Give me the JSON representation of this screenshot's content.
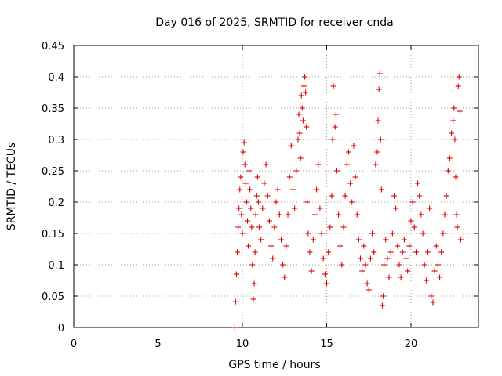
{
  "chart_data": {
    "type": "scatter",
    "title": "Day 016 of 2025, SRMTID for receiver cnda",
    "xlabel": "GPS time / hours",
    "ylabel": "SRMTID / TECUs",
    "xlim": [
      0,
      24
    ],
    "ylim": [
      0,
      0.45
    ],
    "xticks": [
      0,
      5,
      10,
      15,
      20
    ],
    "xtick_labels": [
      "0",
      "5",
      "10",
      "15",
      "20"
    ],
    "yticks": [
      0,
      0.05,
      0.1,
      0.15,
      0.2,
      0.25,
      0.3,
      0.35,
      0.4,
      0.45
    ],
    "ytick_labels": [
      "0",
      "0.05",
      "0.1",
      "0.15",
      "0.2",
      "0.25",
      "0.3",
      "0.35",
      "0.4",
      "0.45"
    ],
    "grid": true,
    "marker": "+",
    "marker_color": "#e00000",
    "series": [
      {
        "name": "SRMTID",
        "points": [
          [
            9.55,
            0.0
          ],
          [
            9.6,
            0.041
          ],
          [
            9.65,
            0.085
          ],
          [
            9.7,
            0.12
          ],
          [
            9.75,
            0.16
          ],
          [
            9.8,
            0.19
          ],
          [
            9.85,
            0.22
          ],
          [
            9.9,
            0.24
          ],
          [
            9.95,
            0.18
          ],
          [
            10.0,
            0.15
          ],
          [
            10.05,
            0.28
          ],
          [
            10.1,
            0.295
          ],
          [
            10.15,
            0.26
          ],
          [
            10.2,
            0.23
          ],
          [
            10.25,
            0.2
          ],
          [
            10.3,
            0.17
          ],
          [
            10.35,
            0.13
          ],
          [
            10.4,
            0.25
          ],
          [
            10.45,
            0.22
          ],
          [
            10.5,
            0.19
          ],
          [
            10.55,
            0.16
          ],
          [
            10.6,
            0.1
          ],
          [
            10.65,
            0.045
          ],
          [
            10.7,
            0.07
          ],
          [
            10.75,
            0.12
          ],
          [
            10.8,
            0.18
          ],
          [
            10.85,
            0.21
          ],
          [
            10.9,
            0.24
          ],
          [
            10.95,
            0.2
          ],
          [
            11.0,
            0.16
          ],
          [
            11.1,
            0.14
          ],
          [
            11.2,
            0.19
          ],
          [
            11.3,
            0.23
          ],
          [
            11.4,
            0.26
          ],
          [
            11.5,
            0.21
          ],
          [
            11.6,
            0.17
          ],
          [
            11.7,
            0.13
          ],
          [
            11.8,
            0.11
          ],
          [
            11.9,
            0.16
          ],
          [
            12.0,
            0.2
          ],
          [
            12.1,
            0.22
          ],
          [
            12.2,
            0.18
          ],
          [
            12.3,
            0.14
          ],
          [
            12.4,
            0.1
          ],
          [
            12.5,
            0.08
          ],
          [
            12.6,
            0.13
          ],
          [
            12.7,
            0.18
          ],
          [
            12.8,
            0.24
          ],
          [
            12.9,
            0.29
          ],
          [
            13.0,
            0.22
          ],
          [
            13.1,
            0.19
          ],
          [
            13.2,
            0.25
          ],
          [
            13.3,
            0.3
          ],
          [
            13.35,
            0.34
          ],
          [
            13.4,
            0.31
          ],
          [
            13.45,
            0.27
          ],
          [
            13.5,
            0.37
          ],
          [
            13.55,
            0.35
          ],
          [
            13.6,
            0.33
          ],
          [
            13.65,
            0.385
          ],
          [
            13.7,
            0.4
          ],
          [
            13.75,
            0.375
          ],
          [
            13.8,
            0.32
          ],
          [
            13.85,
            0.2
          ],
          [
            13.9,
            0.15
          ],
          [
            14.0,
            0.12
          ],
          [
            14.1,
            0.09
          ],
          [
            14.2,
            0.14
          ],
          [
            14.3,
            0.18
          ],
          [
            14.4,
            0.22
          ],
          [
            14.5,
            0.26
          ],
          [
            14.6,
            0.19
          ],
          [
            14.7,
            0.15
          ],
          [
            14.8,
            0.11
          ],
          [
            14.9,
            0.085
          ],
          [
            15.0,
            0.07
          ],
          [
            15.1,
            0.12
          ],
          [
            15.2,
            0.16
          ],
          [
            15.3,
            0.21
          ],
          [
            15.35,
            0.3
          ],
          [
            15.4,
            0.385
          ],
          [
            15.5,
            0.32
          ],
          [
            15.55,
            0.34
          ],
          [
            15.6,
            0.25
          ],
          [
            15.7,
            0.18
          ],
          [
            15.8,
            0.13
          ],
          [
            15.9,
            0.1
          ],
          [
            16.0,
            0.16
          ],
          [
            16.1,
            0.21
          ],
          [
            16.2,
            0.26
          ],
          [
            16.3,
            0.28
          ],
          [
            16.4,
            0.23
          ],
          [
            16.5,
            0.2
          ],
          [
            16.6,
            0.29
          ],
          [
            16.7,
            0.24
          ],
          [
            16.8,
            0.18
          ],
          [
            16.9,
            0.14
          ],
          [
            17.0,
            0.11
          ],
          [
            17.1,
            0.09
          ],
          [
            17.2,
            0.13
          ],
          [
            17.3,
            0.1
          ],
          [
            17.4,
            0.07
          ],
          [
            17.5,
            0.06
          ],
          [
            17.6,
            0.11
          ],
          [
            17.7,
            0.15
          ],
          [
            17.8,
            0.12
          ],
          [
            17.9,
            0.26
          ],
          [
            18.0,
            0.28
          ],
          [
            18.05,
            0.33
          ],
          [
            18.1,
            0.38
          ],
          [
            18.15,
            0.405
          ],
          [
            18.2,
            0.3
          ],
          [
            18.25,
            0.22
          ],
          [
            18.3,
            0.035
          ],
          [
            18.35,
            0.05
          ],
          [
            18.4,
            0.1
          ],
          [
            18.5,
            0.14
          ],
          [
            18.6,
            0.11
          ],
          [
            18.7,
            0.08
          ],
          [
            18.8,
            0.12
          ],
          [
            18.9,
            0.15
          ],
          [
            19.0,
            0.21
          ],
          [
            19.1,
            0.19
          ],
          [
            19.2,
            0.13
          ],
          [
            19.3,
            0.1
          ],
          [
            19.4,
            0.08
          ],
          [
            19.5,
            0.12
          ],
          [
            19.6,
            0.14
          ],
          [
            19.7,
            0.11
          ],
          [
            19.8,
            0.09
          ],
          [
            19.9,
            0.13
          ],
          [
            20.0,
            0.17
          ],
          [
            20.1,
            0.2
          ],
          [
            20.2,
            0.16
          ],
          [
            20.3,
            0.12
          ],
          [
            20.4,
            0.23
          ],
          [
            20.5,
            0.21
          ],
          [
            20.6,
            0.18
          ],
          [
            20.7,
            0.15
          ],
          [
            20.8,
            0.1
          ],
          [
            20.9,
            0.075
          ],
          [
            21.0,
            0.12
          ],
          [
            21.1,
            0.19
          ],
          [
            21.2,
            0.05
          ],
          [
            21.3,
            0.04
          ],
          [
            21.4,
            0.09
          ],
          [
            21.5,
            0.13
          ],
          [
            21.6,
            0.1
          ],
          [
            21.7,
            0.08
          ],
          [
            21.8,
            0.12
          ],
          [
            21.9,
            0.15
          ],
          [
            22.0,
            0.18
          ],
          [
            22.1,
            0.21
          ],
          [
            22.2,
            0.25
          ],
          [
            22.3,
            0.27
          ],
          [
            22.4,
            0.31
          ],
          [
            22.5,
            0.33
          ],
          [
            22.55,
            0.35
          ],
          [
            22.6,
            0.3
          ],
          [
            22.65,
            0.24
          ],
          [
            22.7,
            0.18
          ],
          [
            22.75,
            0.16
          ],
          [
            22.8,
            0.385
          ],
          [
            22.85,
            0.4
          ],
          [
            22.9,
            0.345
          ],
          [
            22.95,
            0.14
          ]
        ]
      }
    ]
  }
}
